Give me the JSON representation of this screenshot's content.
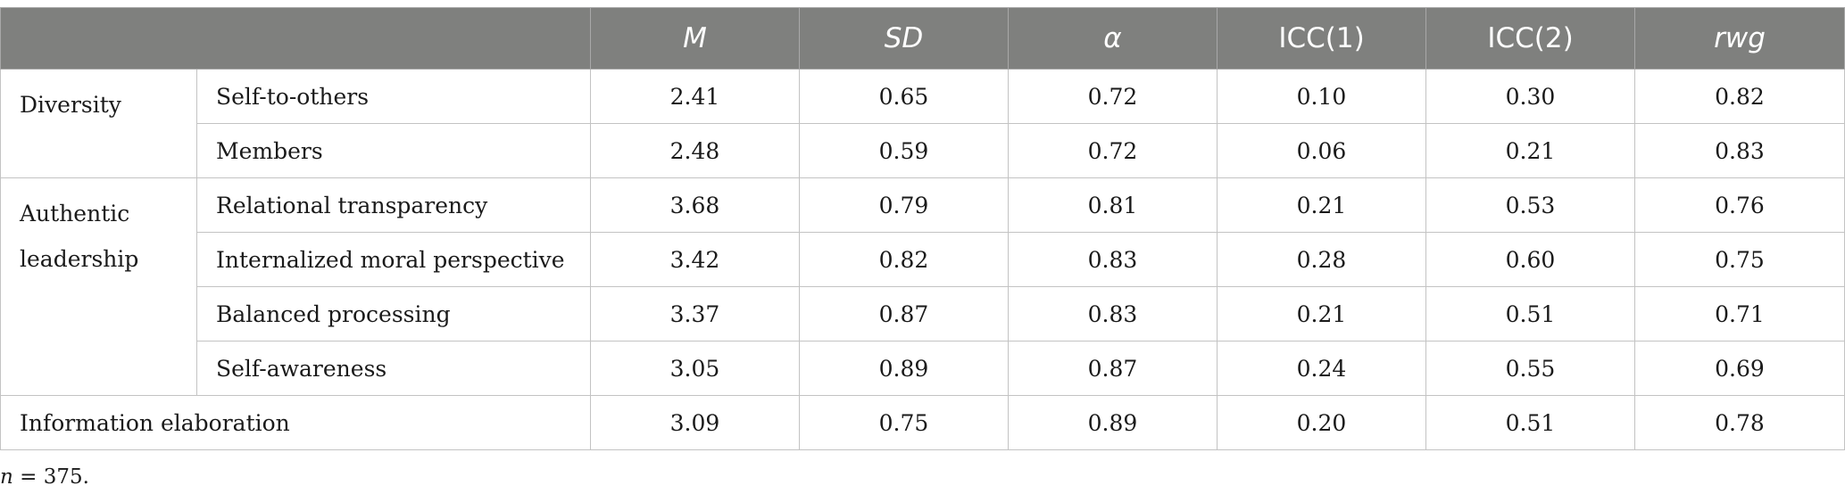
{
  "table": {
    "headers": [
      "",
      "M",
      "SD",
      "α",
      "ICC(1)",
      "ICC(2)",
      "rwg"
    ],
    "groups": [
      {
        "label": "Diversity",
        "rows": [
          {
            "label": "Self-to-others",
            "values": [
              "2.41",
              "0.65",
              "0.72",
              "0.10",
              "0.30",
              "0.82"
            ]
          },
          {
            "label": "Members",
            "values": [
              "2.48",
              "0.59",
              "0.72",
              "0.06",
              "0.21",
              "0.83"
            ]
          }
        ]
      },
      {
        "label_lines": [
          "Authentic",
          "leadership"
        ],
        "rows": [
          {
            "label": "Relational transparency",
            "values": [
              "3.68",
              "0.79",
              "0.81",
              "0.21",
              "0.53",
              "0.76"
            ]
          },
          {
            "label": "Internalized moral perspective",
            "values": [
              "3.42",
              "0.82",
              "0.83",
              "0.28",
              "0.60",
              "0.75"
            ]
          },
          {
            "label": "Balanced processing",
            "values": [
              "3.37",
              "0.87",
              "0.83",
              "0.21",
              "0.51",
              "0.71"
            ]
          },
          {
            "label": "Self-awareness",
            "values": [
              "3.05",
              "0.89",
              "0.87",
              "0.24",
              "0.55",
              "0.69"
            ]
          }
        ]
      }
    ],
    "final_row": {
      "label": "Information elaboration",
      "values": [
        "3.09",
        "0.75",
        "0.89",
        "0.20",
        "0.51",
        "0.78"
      ]
    }
  },
  "footnote": {
    "var": "n",
    "text": " = 375."
  }
}
